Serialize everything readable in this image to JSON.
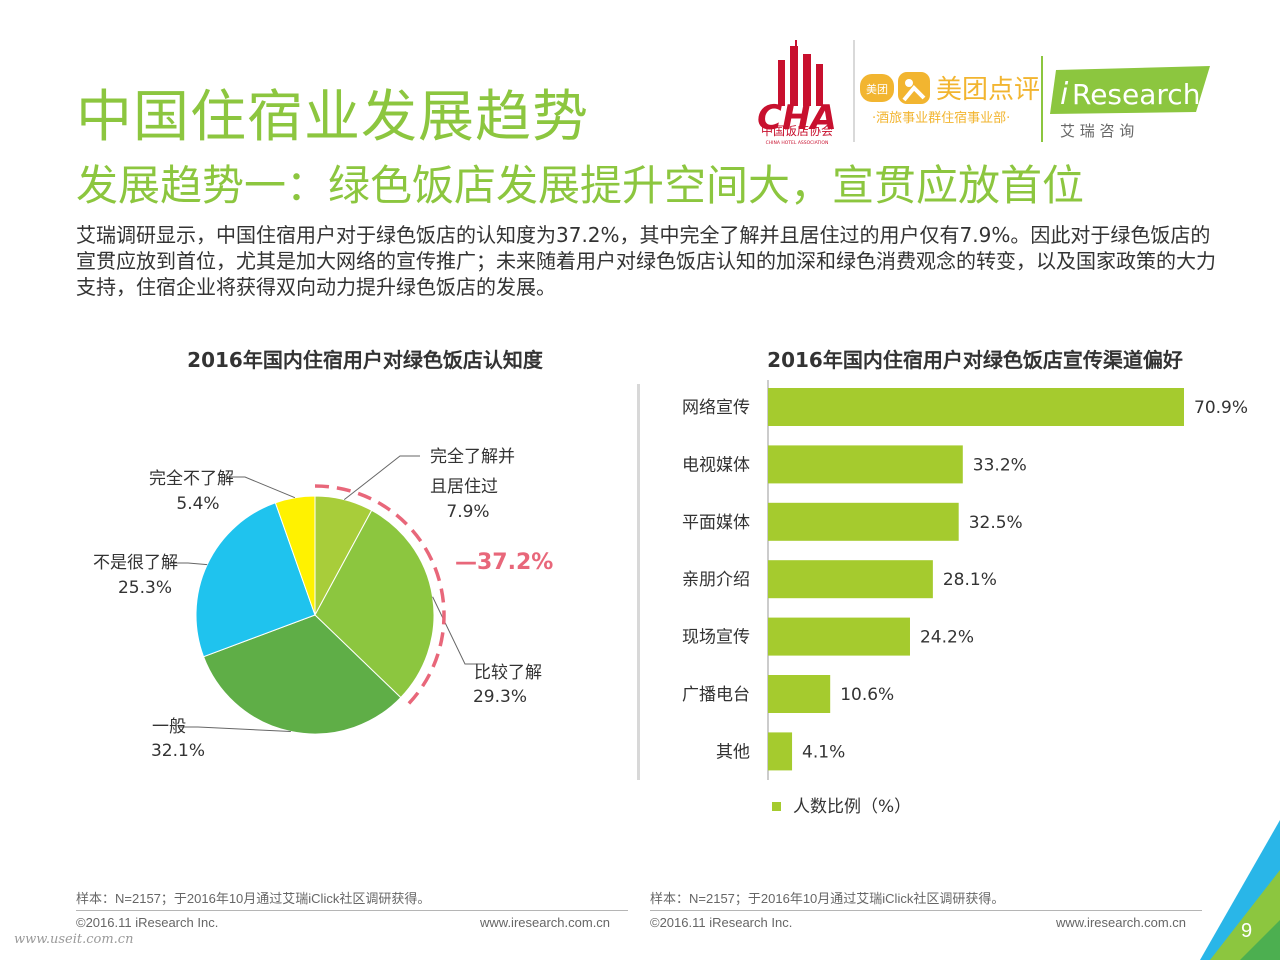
{
  "page": {
    "title": "中国住宿业发展趋势",
    "subtitle": "发展趋势一：绿色饭店发展提升空间大，宣贯应放首位",
    "intro": "艾瑞调研显示，中国住宿用户对于绿色饭店的认知度为37.2%，其中完全了解并且居住过的用户仅有7.9%。因此对于绿色饭店的宣贯应放到首位，尤其是加大网络的宣传推广；未来随着用户对绿色饭店认知的加深和绿色消费观念的转变，以及国家政策的大力支持，住宿企业将获得双向动力提升绿色饭店的发展。",
    "page_number": "9",
    "watermark": "www.useit.com.cn"
  },
  "logos": {
    "cha_letters": "CHA",
    "cha_name": "中国饭店协会",
    "cha_english": "CHINA HOTEL ASSOCIATION",
    "meituan_badge": "美团",
    "meituan_brand": "美团点评",
    "meituan_dept": "·酒旅事业群住宿事业部·",
    "iresearch_i": "i",
    "iresearch_word": "Research",
    "iresearch_cn": "艾 瑞 咨 询"
  },
  "colors": {
    "accent_green": "#8cc63f",
    "bar_green": "#a5cb2e",
    "highlight_red": "#e8677a"
  },
  "footers": [
    {
      "sample": "样本：N=2157；于2016年10月通过艾瑞iClick社区调研获得。",
      "copyright": "©2016.11 iResearch Inc.",
      "url": "www.iresearch.com.cn"
    },
    {
      "sample": "样本：N=2157；于2016年10月通过艾瑞iClick社区调研获得。",
      "copyright": "©2016.11 iResearch Inc.",
      "url": "www.iresearch.com.cn"
    }
  ],
  "chart_data": [
    {
      "type": "pie",
      "title": "2016年国内住宿用户对绿色饭店认知度",
      "slices": [
        {
          "label": "完全了解并且居住过",
          "label_lines": [
            "完全了解并",
            "且居住过"
          ],
          "value": 7.9,
          "value_label": "7.9%",
          "color": "#a8cd3a"
        },
        {
          "label": "比较了解",
          "label_lines": [
            "比较了解"
          ],
          "value": 29.3,
          "value_label": "29.3%",
          "color": "#8cc63f"
        },
        {
          "label": "一般",
          "label_lines": [
            "一般"
          ],
          "value": 32.1,
          "value_label": "32.1%",
          "color": "#5fae47"
        },
        {
          "label": "不是很了解",
          "label_lines": [
            "不是很了解"
          ],
          "value": 25.3,
          "value_label": "25.3%",
          "color": "#1fc3ee"
        },
        {
          "label": "完全不了解",
          "label_lines": [
            "完全不了解"
          ],
          "value": 5.4,
          "value_label": "5.4%",
          "color": "#fff200"
        }
      ],
      "highlight": {
        "label": "37.2%",
        "prefix": "—",
        "covers": [
          "完全了解并且居住过",
          "比较了解"
        ]
      }
    },
    {
      "type": "bar",
      "orientation": "horizontal",
      "title": "2016年国内住宿用户对绿色饭店宣传渠道偏好",
      "categories": [
        "网络宣传",
        "电视媒体",
        "平面媒体",
        "亲朋介绍",
        "现场宣传",
        "广播电台",
        "其他"
      ],
      "series": [
        {
          "name": "人数比例（%）",
          "values": [
            70.9,
            33.2,
            32.5,
            28.1,
            24.2,
            10.6,
            4.1
          ],
          "color": "#a5cb2e"
        }
      ],
      "value_labels": [
        "70.9%",
        "33.2%",
        "32.5%",
        "28.1%",
        "24.2%",
        "10.6%",
        "4.1%"
      ],
      "xlim": [
        0,
        70.9
      ],
      "legend_position": "bottom"
    }
  ]
}
